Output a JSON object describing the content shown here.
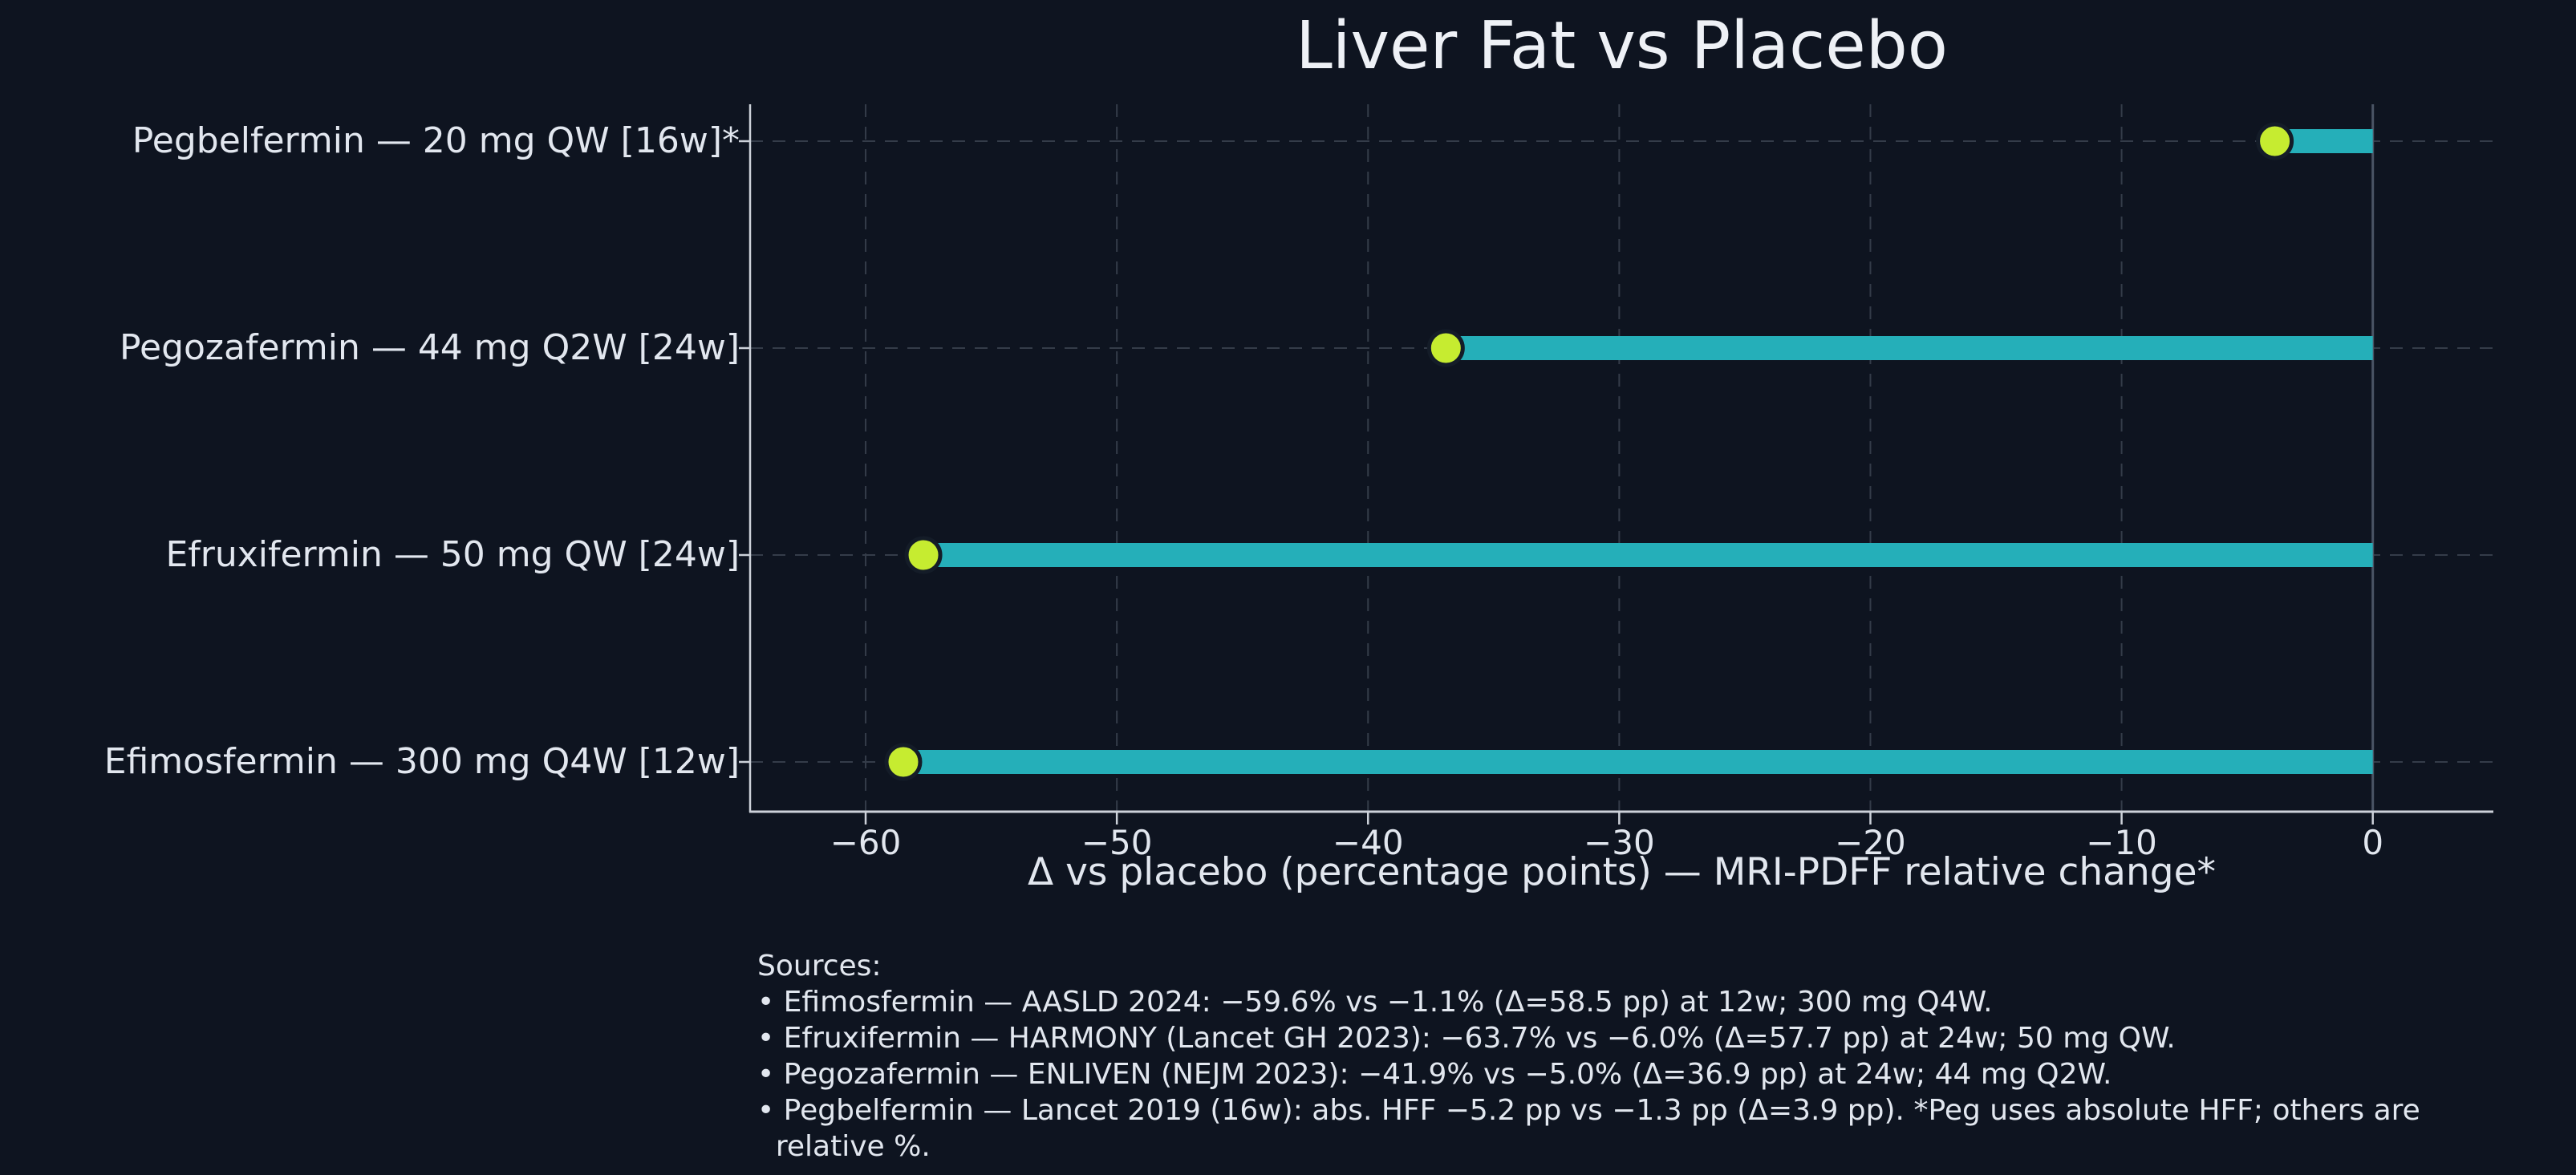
{
  "page": {
    "background": "#0e1420"
  },
  "chart_data": {
    "type": "bar",
    "variant": "horizontal-lollipop",
    "title": "Liver Fat vs Placebo",
    "xlabel": "Δ vs placebo (percentage points) — MRI-PDFF relative change*",
    "categories": [
      "Pegbelfermin — 20 mg QW [16w]*",
      "Pegozafermin — 44 mg Q2W [24w]",
      "Efruxifermin — 50 mg QW [24w]",
      "Efimosfermin — 300 mg Q4W [12w]"
    ],
    "values": [
      -3.9,
      -36.9,
      -57.7,
      -58.5
    ],
    "baseline": 0,
    "xlim": [
      -64.6,
      4.8
    ],
    "xticks": [
      -60,
      -50,
      -40,
      -30,
      -20,
      -10,
      0
    ],
    "xtick_labels": [
      "−60",
      "−50",
      "−40",
      "−30",
      "−20",
      "−10",
      "0"
    ],
    "grid": "dashed gridlines on both axes",
    "legend": "none",
    "colors": {
      "stem": "#25afb9",
      "marker": "#c6ec30",
      "marker_edge": "#141c28",
      "grid": "#343c49",
      "zero_line": "#4a5464",
      "axis": "#ccd1d9",
      "text": "#e2e7ef",
      "background": "#0e1420"
    }
  },
  "footnotes": {
    "lines": [
      "Sources:",
      "• Efimosfermin — AASLD 2024: −59.6% vs −1.1% (Δ=58.5 pp) at 12w; 300 mg Q4W.",
      "• Efruxifermin — HARMONY (Lancet GH 2023): −63.7% vs −6.0% (Δ=57.7 pp) at 24w; 50 mg QW.",
      "• Pegozafermin — ENLIVEN (NEJM 2023): −41.9% vs −5.0% (Δ=36.9 pp) at 24w; 44 mg Q2W.",
      "• Pegbelfermin — Lancet 2019 (16w): abs. HFF −5.2 pp vs −1.3 pp (Δ=3.9 pp). *Peg uses absolute HFF; others are",
      "  relative %."
    ]
  }
}
